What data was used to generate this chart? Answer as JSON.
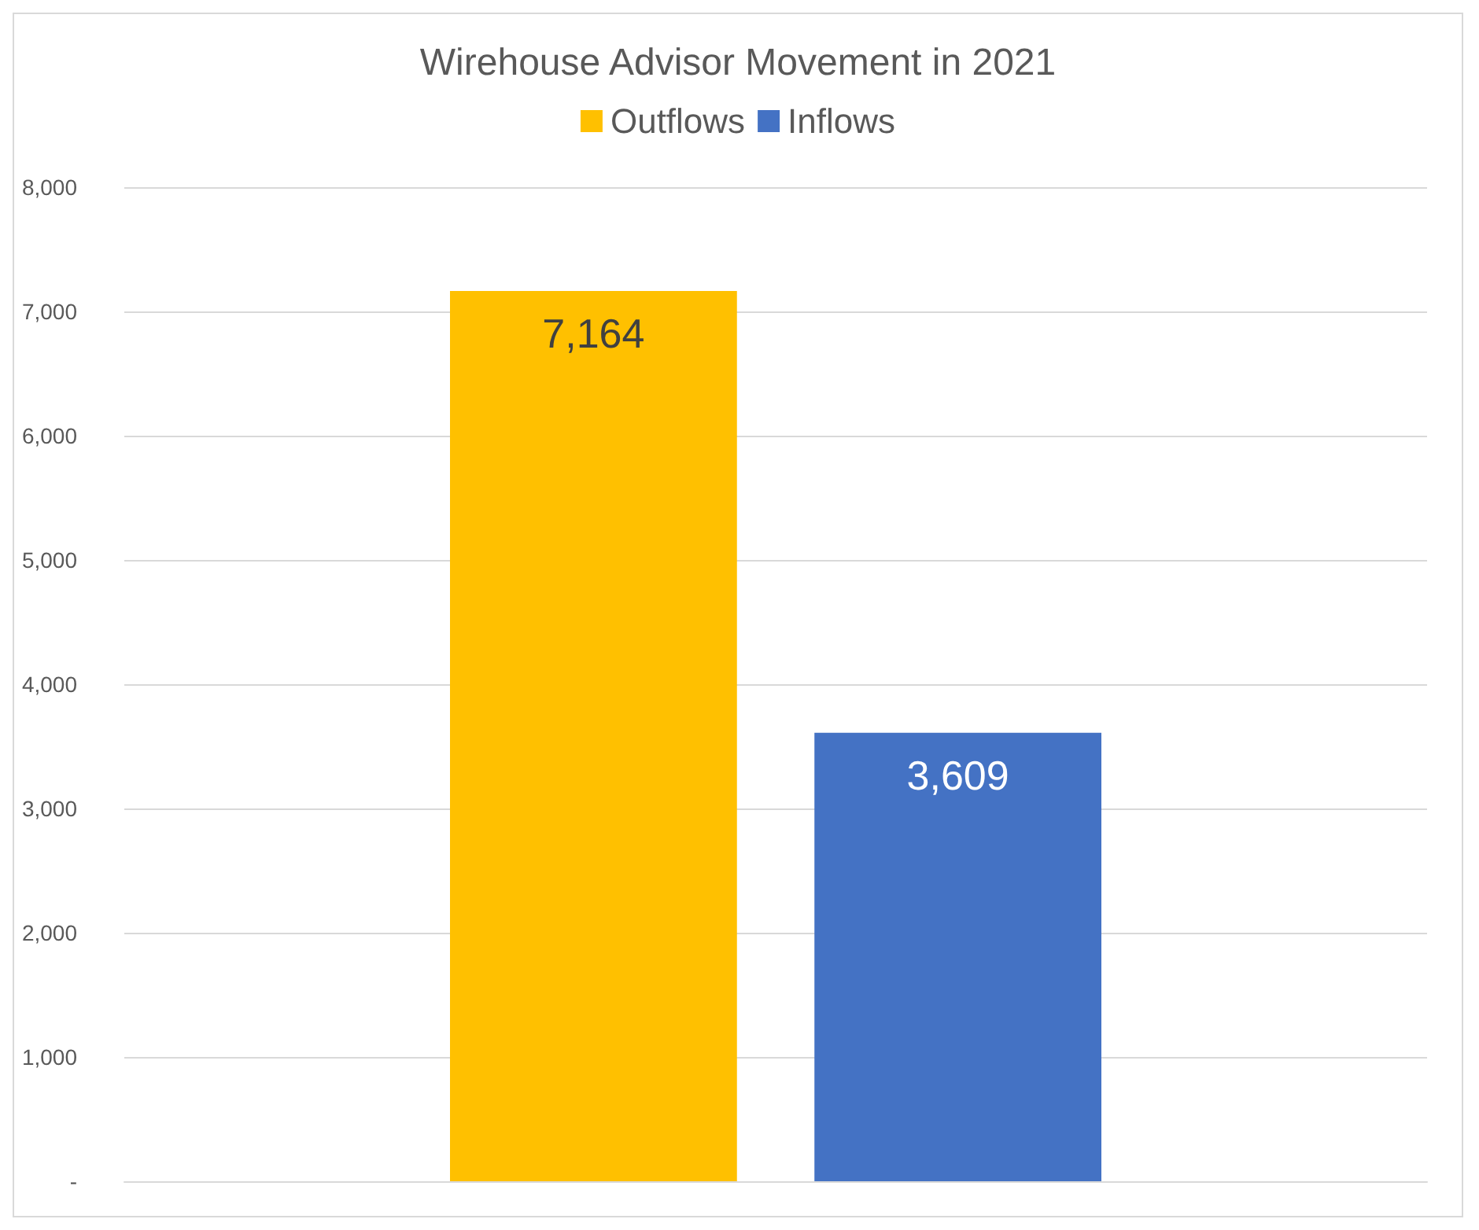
{
  "chart_data": {
    "type": "bar",
    "title": "Wirehouse Advisor Movement in 2021",
    "categories": [
      null
    ],
    "series": [
      {
        "name": "Outflows",
        "color": "#ffc000",
        "values": [
          7164
        ],
        "value_labels": [
          "7,164"
        ]
      },
      {
        "name": "Inflows",
        "color": "#4472c4",
        "values": [
          3609
        ],
        "value_labels": [
          "3,609"
        ]
      }
    ],
    "ylim": [
      0,
      8000
    ],
    "yticks": [
      {
        "value": 0,
        "label": "-"
      },
      {
        "value": 1000,
        "label": "1,000"
      },
      {
        "value": 2000,
        "label": "2,000"
      },
      {
        "value": 3000,
        "label": "3,000"
      },
      {
        "value": 4000,
        "label": "4,000"
      },
      {
        "value": 5000,
        "label": "5,000"
      },
      {
        "value": 6000,
        "label": "6,000"
      },
      {
        "value": 7000,
        "label": "7,000"
      },
      {
        "value": 8000,
        "label": "8,000"
      }
    ],
    "grid": "y",
    "legend": "top"
  }
}
